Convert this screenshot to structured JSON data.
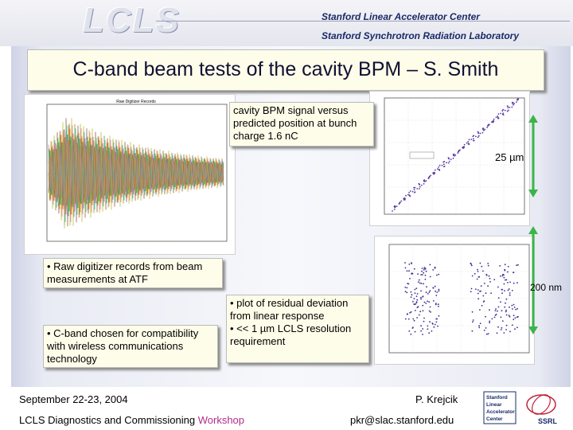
{
  "header": {
    "logo_text": "LCLS",
    "org_line1": "Stanford Linear Accelerator Center",
    "org_line2": "Stanford Synchrotron Radiation Laboratory"
  },
  "slide": {
    "title": "C-band beam tests of the cavity BPM – S. Smith",
    "callout_signal": "cavity BPM signal versus predicted position at bunch charge 1.6 nC",
    "label_25um": "25 µm",
    "label_200nm": "200 nm",
    "callout_raw": "• Raw digitizer records from beam measurements at ATF",
    "callout_cband": "• C-band chosen for compatibility with wireless communications technology",
    "callout_residual": "• plot of residual deviation from linear response\n• << 1 µm LCLS resolution requirement"
  },
  "footer": {
    "date": "September 22-23, 2004",
    "author": "P. Krejcik",
    "workshop_prefix": "LCLS Diagnostics and Commissioning ",
    "workshop_highlight": "Workshop",
    "email": "pkr@slac.stanford.edu",
    "badge_lines": [
      "Stanford",
      "Linear",
      "Accelerator",
      "Center"
    ],
    "ssrl": "SSRL"
  },
  "colors": {
    "arrow_green": "#3cb44b",
    "title_box_bg": "#fefde9",
    "header_text": "#1a2a66"
  }
}
